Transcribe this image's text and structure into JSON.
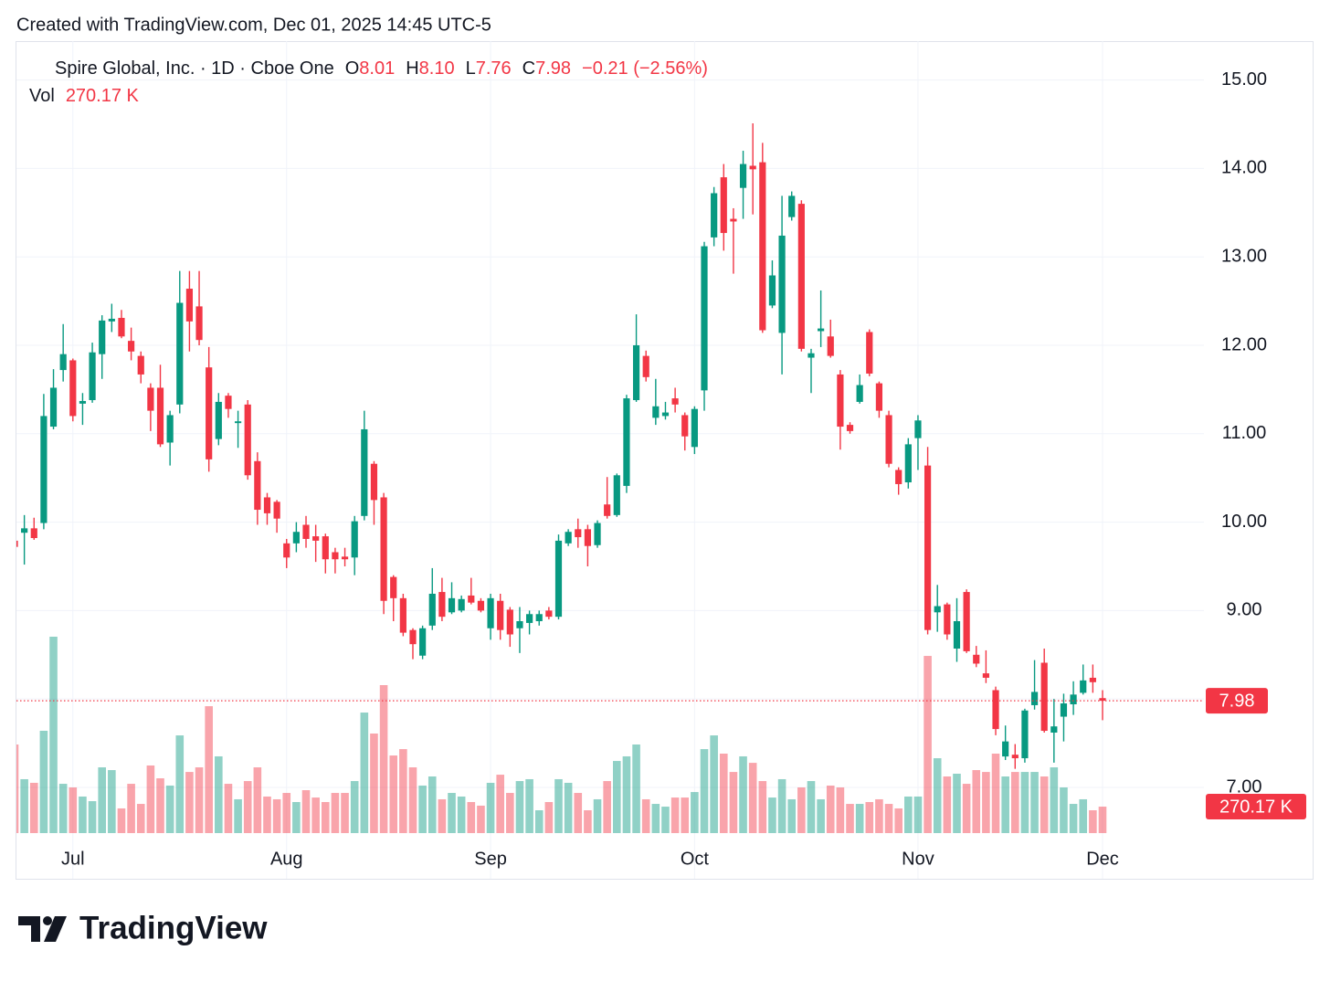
{
  "header": {
    "created": "Created with TradingView.com, Dec 01, 2025 14:45 UTC-5"
  },
  "brand": "TradingView",
  "chart_data": {
    "type": "candlestick",
    "legend": {
      "symbol": "Spire Global, Inc. · 1D · Cboe One",
      "open_label": "O",
      "open": "8.01",
      "high_label": "H",
      "high": "8.10",
      "low_label": "L",
      "low": "7.76",
      "close_label": "C",
      "close": "7.98",
      "change": "−0.21 (−2.56%)",
      "volume_label": "Vol",
      "volume": "270.17 K"
    },
    "categories": [
      null,
      null,
      null,
      null,
      null,
      null,
      "Jul",
      null,
      null,
      null,
      null,
      null,
      null,
      null,
      null,
      null,
      null,
      null,
      null,
      null,
      null,
      null,
      null,
      null,
      null,
      null,
      null,
      null,
      "Aug",
      null,
      null,
      null,
      null,
      null,
      null,
      null,
      null,
      null,
      null,
      null,
      null,
      null,
      null,
      null,
      null,
      null,
      null,
      null,
      null,
      "Sep",
      null,
      null,
      null,
      null,
      null,
      null,
      null,
      null,
      null,
      null,
      null,
      null,
      null,
      null,
      null,
      null,
      null,
      null,
      null,
      null,
      "Oct",
      null,
      null,
      null,
      null,
      null,
      null,
      null,
      null,
      null,
      null,
      null,
      null,
      null,
      null,
      null,
      null,
      null,
      null,
      null,
      null,
      null,
      null,
      "Nov",
      null,
      null,
      null,
      null,
      null,
      null,
      null,
      null,
      null,
      null,
      null,
      null,
      null,
      null,
      null,
      null,
      null,
      null,
      "Dec"
    ],
    "open": [
      9.79,
      9.88,
      9.93,
      9.99,
      11.08,
      11.72,
      11.83,
      11.34,
      11.38,
      11.9,
      12.27,
      12.31,
      12.05,
      11.88,
      11.52,
      11.52,
      10.9,
      11.33,
      12.64,
      12.44,
      11.75,
      10.94,
      11.43,
      11.12,
      11.33,
      10.69,
      10.28,
      10.23,
      9.76,
      9.76,
      9.97,
      9.84,
      9.84,
      9.66,
      9.61,
      9.6,
      10.07,
      10.66,
      10.28,
      9.38,
      9.14,
      8.78,
      8.49,
      8.83,
      9.21,
      8.98,
      9.0,
      9.17,
      9.11,
      8.8,
      9.11,
      9.01,
      8.8,
      8.86,
      8.88,
      9.0,
      8.93,
      9.76,
      9.92,
      9.92,
      9.74,
      10.2,
      10.08,
      10.41,
      11.38,
      11.88,
      11.18,
      11.2,
      11.4,
      11.21,
      10.85,
      11.49,
      13.22,
      13.9,
      13.43,
      13.78,
      14.03,
      14.07,
      12.45,
      12.14,
      13.45,
      13.6,
      11.86,
      12.16,
      12.1,
      11.67,
      11.1,
      11.36,
      12.15,
      11.57,
      11.21,
      10.59,
      10.45,
      10.95,
      10.64,
      8.98,
      9.07,
      8.57,
      9.21,
      8.5,
      8.29,
      8.1,
      7.35,
      7.37,
      7.33,
      7.93,
      8.41,
      7.62,
      7.8,
      7.94,
      8.07,
      8.24,
      8.01
    ],
    "high": [
      9.85,
      10.08,
      10.05,
      11.45,
      11.73,
      12.24,
      11.85,
      11.46,
      12.03,
      12.34,
      12.47,
      12.4,
      12.2,
      11.93,
      11.57,
      11.78,
      11.26,
      12.84,
      12.84,
      12.84,
      11.98,
      11.46,
      11.46,
      11.26,
      11.38,
      10.79,
      10.33,
      10.25,
      9.81,
      10.0,
      10.07,
      9.97,
      9.87,
      9.71,
      9.71,
      10.07,
      11.26,
      10.69,
      10.33,
      9.4,
      9.19,
      8.8,
      8.83,
      9.48,
      9.37,
      9.32,
      9.17,
      9.37,
      9.14,
      9.19,
      9.19,
      9.04,
      9.04,
      9.0,
      9.0,
      9.04,
      9.86,
      9.92,
      10.04,
      9.97,
      10.02,
      10.51,
      10.55,
      11.44,
      12.35,
      11.94,
      11.62,
      11.36,
      11.52,
      11.24,
      11.31,
      13.17,
      13.79,
      14.05,
      13.55,
      14.2,
      14.51,
      14.29,
      12.96,
      13.69,
      13.74,
      13.64,
      11.96,
      12.62,
      12.29,
      11.72,
      11.13,
      11.67,
      12.18,
      11.59,
      11.26,
      10.62,
      10.95,
      11.21,
      10.85,
      9.29,
      9.09,
      9.14,
      9.24,
      8.6,
      8.55,
      8.14,
      7.7,
      7.49,
      7.89,
      8.44,
      8.57,
      8.0,
      8.06,
      8.2,
      8.39,
      8.39,
      8.1
    ],
    "low": [
      9.7,
      9.52,
      9.8,
      9.92,
      11.05,
      11.59,
      11.14,
      11.1,
      11.35,
      11.62,
      12.15,
      12.08,
      11.83,
      11.57,
      11.03,
      10.85,
      10.64,
      11.23,
      11.93,
      12.0,
      10.57,
      10.87,
      11.18,
      10.84,
      10.48,
      9.97,
      9.97,
      9.88,
      9.48,
      9.66,
      9.71,
      9.55,
      9.42,
      9.42,
      9.5,
      9.4,
      10.02,
      9.97,
      8.96,
      8.88,
      8.71,
      8.45,
      8.45,
      8.78,
      8.88,
      8.96,
      8.98,
      9.07,
      8.98,
      8.67,
      8.67,
      8.59,
      8.52,
      8.73,
      8.83,
      8.9,
      8.9,
      9.73,
      9.71,
      9.5,
      9.71,
      10.04,
      10.06,
      10.33,
      11.36,
      11.59,
      11.1,
      11.16,
      11.24,
      10.81,
      10.77,
      11.26,
      13.12,
      13.07,
      12.81,
      13.43,
      13.48,
      12.14,
      12.42,
      11.67,
      13.41,
      11.93,
      11.46,
      11.98,
      11.86,
      10.82,
      11.0,
      11.34,
      11.65,
      11.18,
      10.62,
      10.31,
      10.38,
      10.59,
      8.73,
      8.76,
      8.67,
      8.42,
      8.52,
      8.36,
      8.18,
      7.59,
      7.31,
      7.21,
      7.28,
      7.88,
      7.62,
      7.28,
      7.52,
      7.82,
      8.05,
      8.07,
      7.76
    ],
    "close": [
      9.72,
      9.93,
      9.82,
      11.2,
      11.52,
      11.9,
      11.2,
      11.37,
      11.92,
      12.28,
      12.3,
      12.1,
      11.93,
      11.67,
      11.26,
      10.88,
      11.21,
      12.48,
      12.27,
      12.06,
      10.71,
      11.36,
      11.28,
      11.14,
      10.53,
      10.14,
      10.1,
      10.04,
      9.6,
      9.89,
      9.81,
      9.79,
      9.58,
      9.58,
      9.58,
      10.01,
      11.05,
      10.25,
      9.11,
      9.14,
      8.75,
      8.62,
      8.8,
      9.19,
      8.93,
      9.14,
      9.13,
      9.09,
      9.0,
      9.14,
      8.78,
      8.73,
      8.88,
      8.96,
      8.96,
      8.93,
      9.79,
      9.89,
      9.83,
      9.73,
      9.99,
      10.07,
      10.53,
      11.4,
      12.0,
      11.64,
      11.31,
      11.24,
      11.33,
      10.97,
      11.28,
      13.12,
      13.72,
      13.27,
      13.4,
      14.05,
      13.99,
      12.17,
      12.79,
      13.24,
      13.69,
      11.96,
      11.91,
      12.19,
      11.88,
      11.08,
      11.03,
      11.55,
      11.68,
      11.26,
      10.66,
      10.43,
      10.88,
      11.15,
      8.78,
      9.05,
      8.73,
      8.88,
      8.54,
      8.4,
      8.24,
      7.66,
      7.52,
      7.33,
      7.87,
      8.08,
      7.64,
      7.69,
      7.95,
      8.05,
      8.21,
      8.19,
      7.98
    ],
    "volume": [
      904,
      550,
      513,
      1044,
      2004,
      503,
      466,
      373,
      326,
      671,
      643,
      252,
      503,
      298,
      690,
      559,
      485,
      997,
      624,
      671,
      1295,
      783,
      503,
      345,
      531,
      671,
      373,
      345,
      410,
      317,
      438,
      363,
      317,
      410,
      410,
      531,
      1230,
      1016,
      1510,
      792,
      857,
      671,
      485,
      578,
      345,
      410,
      373,
      317,
      280,
      513,
      596,
      410,
      531,
      550,
      233,
      317,
      550,
      513,
      410,
      233,
      345,
      531,
      736,
      783,
      904,
      345,
      298,
      270,
      363,
      363,
      419,
      857,
      997,
      811,
      624,
      783,
      717,
      531,
      363,
      550,
      345,
      466,
      531,
      345,
      485,
      466,
      298,
      298,
      317,
      345,
      298,
      252,
      373,
      373,
      1808,
      764,
      578,
      606,
      503,
      643,
      624,
      811,
      578,
      624,
      624,
      624,
      578,
      671,
      466,
      298,
      345,
      233,
      270.17
    ],
    "up_color": "#089981",
    "down_color": "#f23645",
    "ylim": [
      6.38,
      15.44
    ],
    "yticks": [
      {
        "value": 7,
        "label": "7.00"
      },
      {
        "value": 8,
        "label": "8.00"
      },
      {
        "value": 9,
        "label": "9.00"
      },
      {
        "value": 10,
        "label": "10.00"
      },
      {
        "value": 11,
        "label": "11.00"
      },
      {
        "value": 12,
        "label": "12.00"
      },
      {
        "value": 13,
        "label": "13.00"
      },
      {
        "value": 14,
        "label": "14.00"
      },
      {
        "value": 15,
        "label": "15.00"
      }
    ],
    "y2lim": [
      0,
      2100
    ],
    "grid": true,
    "last_price": {
      "value": 7.98,
      "label": "7.98"
    },
    "last_volume": {
      "value": 270.17,
      "label": "270.17 K"
    }
  }
}
